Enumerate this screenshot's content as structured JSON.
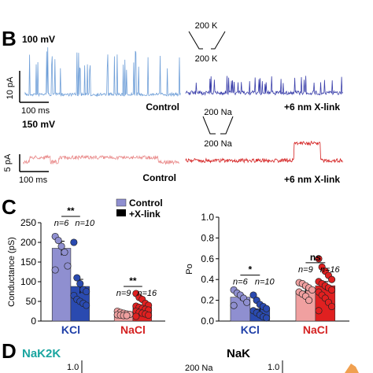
{
  "panel_b": {
    "letter": "B",
    "rows": [
      {
        "voltage": "100 mV",
        "control_label": "Control",
        "xlink_label": "+6 nm X-link",
        "scale_current": "10 pA",
        "scale_time": "100 ms",
        "control_color": "#6f9fd8",
        "xlink_color": "#3a3faa",
        "ion_label": "200 K",
        "ion_label_2": "200 K"
      },
      {
        "voltage": "150 mV",
        "control_label": "Control",
        "xlink_label": "+6 nm X-link",
        "scale_current": "5 pA",
        "scale_time": "100 ms",
        "control_color": "#e98a8a",
        "xlink_color": "#d42020",
        "ion_label": "200 Na",
        "ion_label_2": "200 Na"
      }
    ]
  },
  "panel_c": {
    "letter": "C",
    "legend": [
      {
        "label": "Control",
        "color": "#8f8fd0"
      },
      {
        "label": "+X-link",
        "color": "#000000"
      }
    ],
    "chart_data": [
      {
        "type": "bar",
        "ylabel": "Conductance (pS)",
        "ylim": [
          0,
          250
        ],
        "yticks": [
          0,
          50,
          100,
          150,
          200,
          250
        ],
        "categories": [
          "KCl",
          "NaCl"
        ],
        "category_colors": [
          "#1f3fa8",
          "#d42020"
        ],
        "series": [
          {
            "name": "Control",
            "values": [
              185,
              18
            ],
            "errors": [
              18,
              3
            ],
            "colors": [
              "#8f8fd0",
              "#f0a0a0"
            ],
            "points": [
              [
                215,
                205,
                190,
                175,
                140,
                130
              ],
              [
                25,
                22,
                20,
                18,
                17,
                16,
                15,
                14,
                14
              ]
            ]
          },
          {
            "name": "+X-link",
            "values": [
              88,
              35
            ],
            "errors": [
              18,
              5
            ],
            "colors": [
              "#2a4ab0",
              "#e02020"
            ],
            "points": [
              [
                200,
                110,
                95,
                80,
                75,
                65,
                55,
                50,
                45,
                40
              ],
              [
                70,
                60,
                55,
                45,
                40,
                38,
                35,
                32,
                30,
                28,
                25,
                22,
                20,
                18,
                15,
                12
              ]
            ]
          }
        ],
        "n_labels": [
          [
            "n=6",
            "n=10"
          ],
          [
            "n=9",
            "n=16"
          ]
        ],
        "significance": [
          "**",
          "**"
        ]
      },
      {
        "type": "bar",
        "ylabel": "Po",
        "ylim": [
          0,
          1.0
        ],
        "yticks": [
          0.0,
          0.2,
          0.4,
          0.6,
          0.8,
          1.0
        ],
        "categories": [
          "KCl",
          "NaCl"
        ],
        "category_colors": [
          "#1f3fa8",
          "#d42020"
        ],
        "series": [
          {
            "name": "Control",
            "values": [
              0.23,
              0.29
            ],
            "errors": [
              0.03,
              0.03
            ],
            "colors": [
              "#8f8fd0",
              "#f0a0a0"
            ],
            "points": [
              [
                0.3,
                0.27,
                0.25,
                0.22,
                0.18,
                0.15
              ],
              [
                0.37,
                0.36,
                0.34,
                0.32,
                0.3,
                0.28,
                0.26,
                0.24,
                0.2
              ]
            ]
          },
          {
            "name": "+X-link",
            "values": [
              0.12,
              0.34
            ],
            "errors": [
              0.03,
              0.04
            ],
            "colors": [
              "#2a4ab0",
              "#e02020"
            ],
            "points": [
              [
                0.25,
                0.2,
                0.16,
                0.14,
                0.12,
                0.1,
                0.08,
                0.06,
                0.04,
                0.03
              ],
              [
                0.6,
                0.52,
                0.48,
                0.44,
                0.4,
                0.38,
                0.36,
                0.34,
                0.32,
                0.3,
                0.28,
                0.25,
                0.22,
                0.18,
                0.14,
                0.1
              ]
            ]
          }
        ],
        "n_labels": [
          [
            "n=6",
            "n=10"
          ],
          [
            "n=9",
            "n=16"
          ]
        ],
        "significance": [
          "*",
          "ns"
        ]
      }
    ]
  },
  "panel_d": {
    "letter": "D",
    "left_title": "NaK2K",
    "left_title_color": "#1aa5a0",
    "right_title": "NaK",
    "tick_left": "1.0",
    "tick_right": "1.0",
    "ion_label": "200 Na"
  }
}
